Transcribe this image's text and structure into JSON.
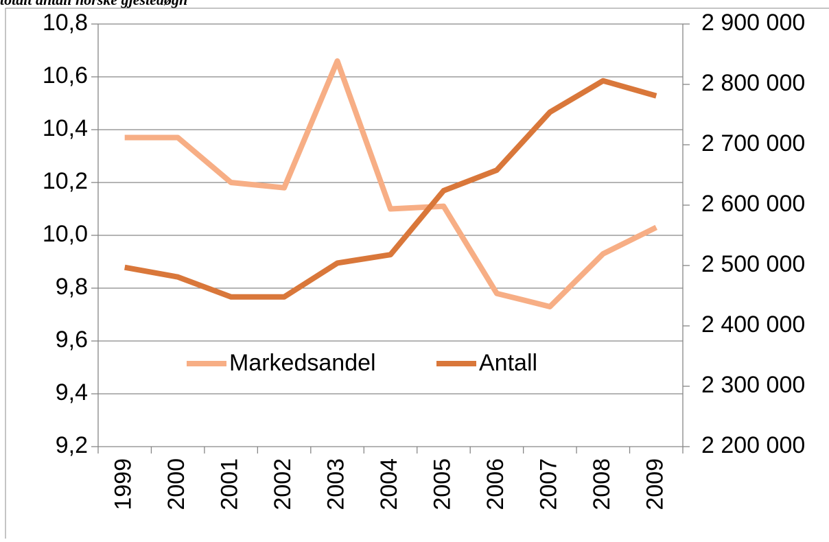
{
  "chart_data": {
    "type": "line",
    "title": "totalt antall norske gjestedøgn",
    "categories": [
      "1999",
      "2000",
      "2001",
      "2002",
      "2003",
      "2004",
      "2005",
      "2006",
      "2007",
      "2008",
      "2009"
    ],
    "series": [
      {
        "name": "Markedsandel",
        "color": "#f7ae85",
        "values": [
          10.37,
          10.37,
          10.2,
          10.18,
          10.66,
          10.1,
          10.11,
          9.78,
          9.73,
          9.93,
          10.03
        ]
      },
      {
        "name": "Antall",
        "color": "#d9773a",
        "axis": "y2",
        "values": [
          2497000,
          2481000,
          2448000,
          2448000,
          2504000,
          2518000,
          2624000,
          2658000,
          2754000,
          2806000,
          2781000
        ]
      }
    ],
    "ylim": [
      9.2,
      10.8
    ],
    "yticks": [
      {
        "value": 9.2,
        "label": "9,2"
      },
      {
        "value": 9.4,
        "label": "9,4"
      },
      {
        "value": 9.6,
        "label": "9,6"
      },
      {
        "value": 9.8,
        "label": "9,8"
      },
      {
        "value": 10.0,
        "label": "10,0"
      },
      {
        "value": 10.2,
        "label": "10,2"
      },
      {
        "value": 10.4,
        "label": "10,4"
      },
      {
        "value": 10.6,
        "label": "10,6"
      },
      {
        "value": 10.8,
        "label": "10,8"
      }
    ],
    "y2lim": [
      2200000,
      2900000
    ],
    "y2ticks": [
      {
        "value": 2200000,
        "label": "2 200 000"
      },
      {
        "value": 2300000,
        "label": "2 300 000"
      },
      {
        "value": 2400000,
        "label": "2 400 000"
      },
      {
        "value": 2500000,
        "label": "2 500 000"
      },
      {
        "value": 2600000,
        "label": "2 600 000"
      },
      {
        "value": 2700000,
        "label": "2 700 000"
      },
      {
        "value": 2800000,
        "label": "2 800 000"
      },
      {
        "value": 2900000,
        "label": "2 900 000"
      }
    ],
    "grid": true
  }
}
